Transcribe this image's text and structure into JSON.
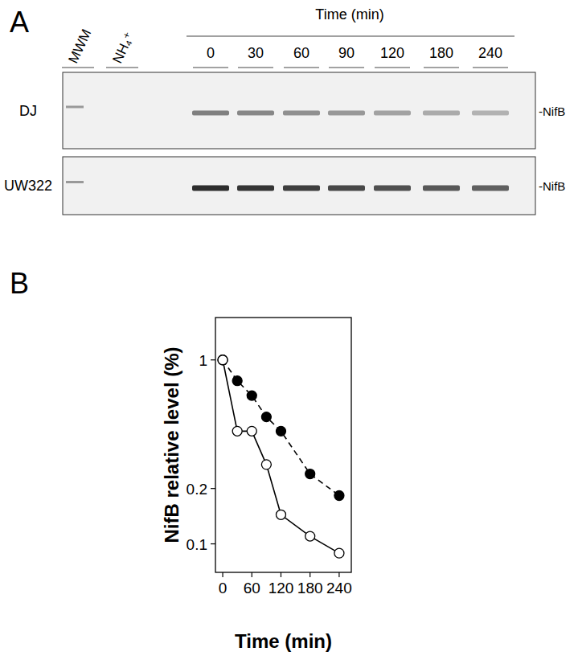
{
  "panel_labels": [
    "A",
    "B"
  ],
  "blot": {
    "lanes": [
      "MWM",
      "NH₄⁺"
    ],
    "time_title": "Time (min)",
    "times": [
      0,
      30,
      60,
      90,
      120,
      180,
      240
    ],
    "rows": [
      "DJ",
      "UW322"
    ],
    "band_label": "-NifB"
  },
  "chart_data": {
    "type": "line",
    "x_label": "Time (min)",
    "y_label": "NifB relative level (%)",
    "x": [
      0,
      30,
      60,
      90,
      120,
      180,
      240
    ],
    "series": [
      {
        "color": "#000000",
        "marker": "filled-circle",
        "line_style": "dashed",
        "values": [
          1,
          0.77,
          0.64,
          0.49,
          0.41,
          0.24,
          0.183
        ]
      },
      {
        "color": "#000000",
        "marker": "open-circle",
        "line_style": "solid",
        "values": [
          1,
          0.41,
          0.41,
          0.27,
          0.144,
          0.11,
          0.089
        ]
      }
    ],
    "log": "y",
    "xlim": [
      -15,
      265
    ],
    "ylim": [
      0.07,
      1.7
    ],
    "xticks": [
      0,
      60,
      120,
      180,
      240
    ],
    "yticks": [
      1,
      0.2,
      0.1
    ],
    "grid": false
  }
}
